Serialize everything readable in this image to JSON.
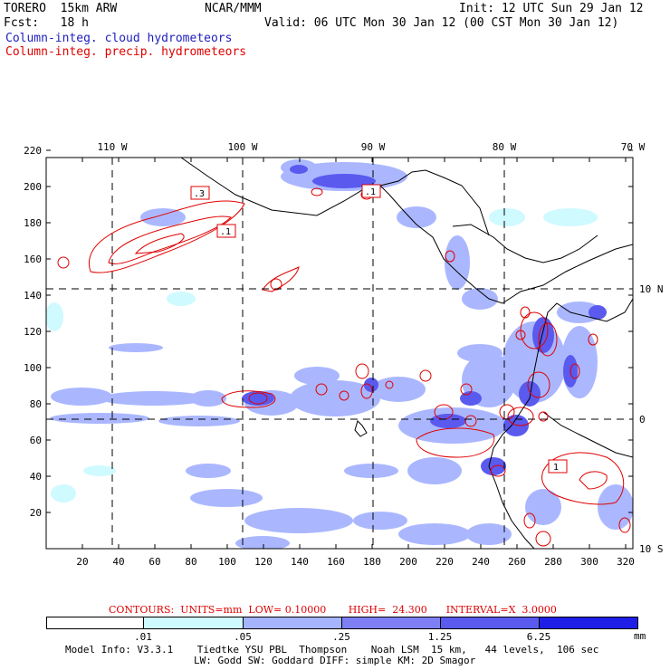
{
  "header": {
    "model": "TORERO  15km ARW",
    "center": "NCAR/MMM",
    "init": "Init: 12 UTC Sun 29 Jan 12",
    "fcst": "Fcst:   18 h",
    "valid": "Valid: 06 UTC Mon 30 Jan 12 (00 CST Mon 30 Jan 12)",
    "field1": "Column-integ. cloud hydrometeors",
    "field2": "Column-integ. precip. hydrometeors"
  },
  "colors": {
    "field1": "#2020c0",
    "field2": "#e00000",
    "coast": "#000000"
  },
  "map": {
    "top_lon_labels": [
      "110 W",
      "100 W",
      "90 W",
      "80 W",
      "70 W"
    ],
    "right_lat_labels": [
      "10 N",
      "0",
      "10 S"
    ],
    "x_ticks": [
      "20",
      "40",
      "60",
      "80",
      "100",
      "120",
      "140",
      "160",
      "180",
      "200",
      "220",
      "240",
      "260",
      "280",
      "300",
      "320"
    ],
    "y_ticks": [
      "20",
      "40",
      "60",
      "80",
      "100",
      "120",
      "140",
      "160",
      "180",
      "200",
      "220"
    ],
    "contour_labels": [
      ".3",
      ".1",
      ".1",
      "1"
    ]
  },
  "contour_info": {
    "text": "CONTOURS:  UNITS=mm  LOW= 0.10000       HIGH=  24.300      INTERVAL=X  3.0000"
  },
  "colorbar": {
    "labels": [
      ".01",
      ".05",
      ".25",
      "1.25",
      "6.25"
    ],
    "unit": "mm",
    "colors": [
      "#ffffff",
      "#cffaff",
      "#a6b4ff",
      "#7f7ff5",
      "#5a5aef",
      "#1e1ee6"
    ]
  },
  "footer": {
    "line1": "Model Info: V3.3.1    Tiedtke YSU PBL  Thompson    Noah LSM  15 km,   44 levels,  106 sec",
    "line2": "LW: Godd SW: Goddard DIFF: simple KM: 2D Smagor"
  }
}
